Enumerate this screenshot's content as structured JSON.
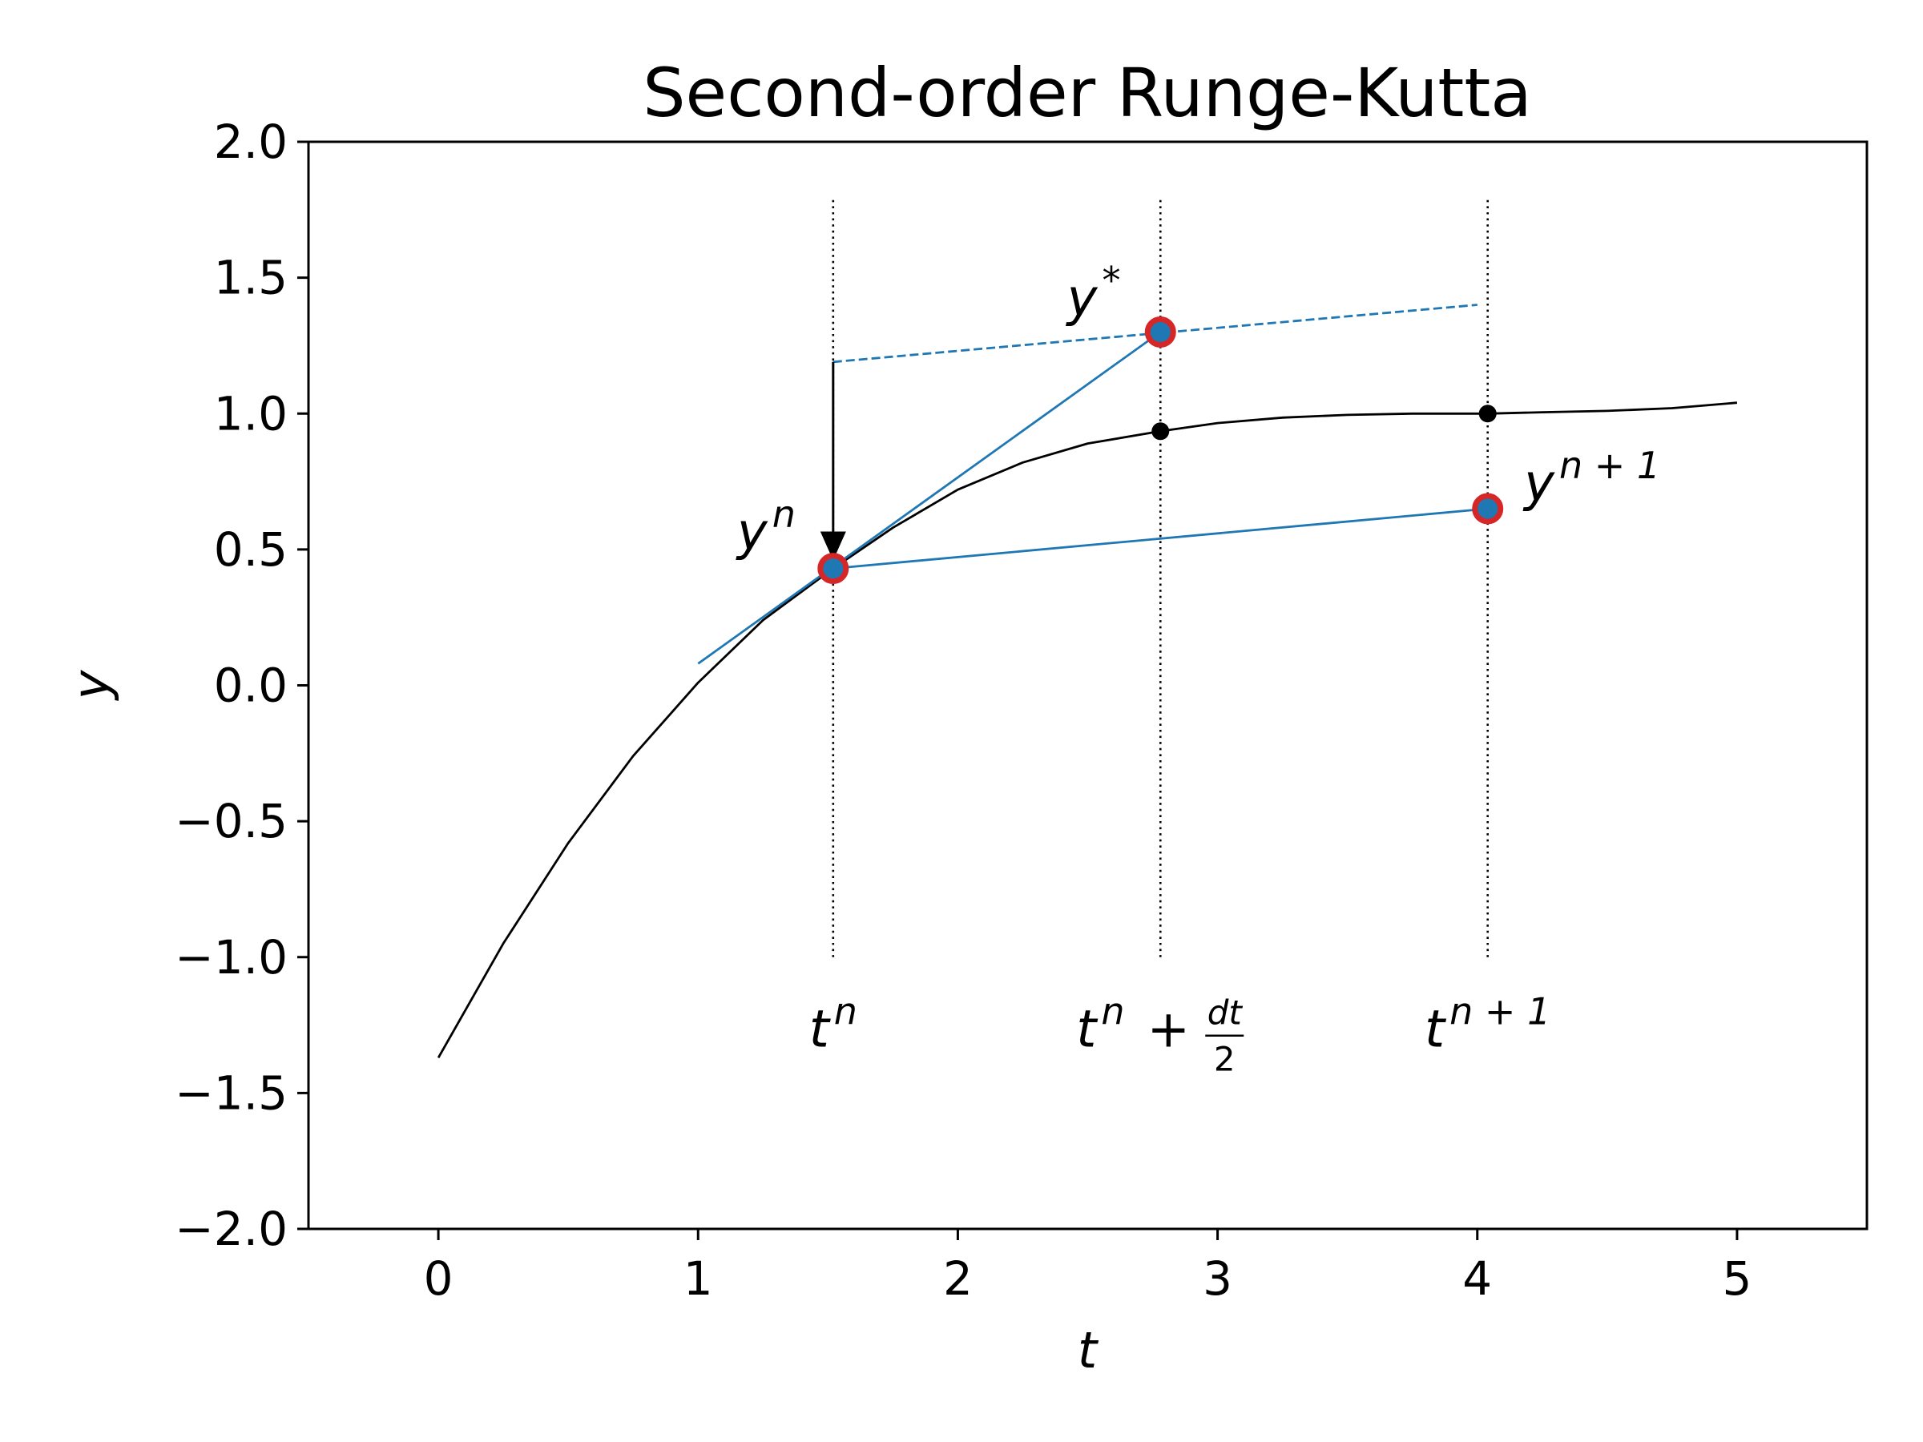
{
  "chart_data": {
    "type": "line",
    "title": "Second-order Runge-Kutta",
    "xlabel": "t",
    "ylabel": "y",
    "xlim": [
      -0.5,
      5.5
    ],
    "ylim": [
      -2.0,
      2.0
    ],
    "x_ticks": [
      0,
      1,
      2,
      3,
      4,
      5
    ],
    "x_tick_labels": [
      "0",
      "1",
      "2",
      "3",
      "4",
      "5"
    ],
    "y_ticks": [
      -2.0,
      -1.5,
      -1.0,
      -0.5,
      0.0,
      0.5,
      1.0,
      1.5,
      2.0
    ],
    "y_tick_labels": [
      "−2.0",
      "−1.5",
      "−1.0",
      "−0.5",
      "0.0",
      "0.5",
      "1.0",
      "1.5",
      "2.0"
    ],
    "grid": false,
    "series": [
      {
        "color": "#000000",
        "style": "solid",
        "x": [
          0.0,
          0.25,
          0.5,
          0.75,
          1.0,
          1.25,
          1.52,
          1.75,
          2.0,
          2.25,
          2.5,
          2.78,
          3.0,
          3.25,
          3.5,
          3.75,
          4.04,
          4.25,
          4.5,
          4.75,
          5.0
        ],
        "y": [
          -1.37,
          -0.95,
          -0.58,
          -0.26,
          0.01,
          0.24,
          0.43,
          0.58,
          0.72,
          0.82,
          0.89,
          0.935,
          0.965,
          0.985,
          0.995,
          1.0,
          1.0,
          1.005,
          1.01,
          1.02,
          1.04
        ]
      },
      {
        "color": "#1f77b4",
        "style": "solid",
        "x": [
          1.0,
          2.78
        ],
        "y": [
          0.08,
          1.3
        ]
      },
      {
        "color": "#1f77b4",
        "style": "solid",
        "x": [
          1.52,
          4.04
        ],
        "y": [
          0.43,
          0.65
        ]
      },
      {
        "color": "#1f77b4",
        "style": "dashed",
        "x": [
          1.52,
          4.0
        ],
        "y": [
          1.19,
          1.4
        ]
      }
    ],
    "vlines": [
      {
        "x": 1.52,
        "y0": -1.0,
        "y1": 1.8
      },
      {
        "x": 2.78,
        "y0": -1.0,
        "y1": 1.8
      },
      {
        "x": 4.04,
        "y0": -1.0,
        "y1": 1.8
      }
    ],
    "markers_highlight": [
      {
        "x": 1.52,
        "y": 0.43
      },
      {
        "x": 2.78,
        "y": 1.3
      },
      {
        "x": 4.04,
        "y": 0.65
      }
    ],
    "markers_exact": [
      {
        "x": 2.78,
        "y": 0.935
      },
      {
        "x": 4.04,
        "y": 1.0
      }
    ],
    "arrow": {
      "x": 1.52,
      "y_from": 1.19,
      "y_to": 0.46
    },
    "annotations": {
      "y_n": {
        "base": "y",
        "sup": "n",
        "x": 1.15,
        "y": 0.5
      },
      "y_star": {
        "base": "y",
        "sup": "*",
        "x": 2.42,
        "y": 1.36
      },
      "y_n1": {
        "base": "y",
        "sup": "n + 1",
        "x": 4.18,
        "y": 0.68
      },
      "t_n": {
        "base": "t",
        "sup": "n",
        "x": 1.52,
        "y": -1.33
      },
      "t_half": {
        "base": "t",
        "sup": "n",
        "plus": "+",
        "frac_num": "dt",
        "frac_den": "2",
        "x": 2.78,
        "y": -1.33
      },
      "t_n1": {
        "base": "t",
        "sup": "n + 1",
        "x": 4.04,
        "y": -1.33
      }
    },
    "colors": {
      "curve": "#000000",
      "line": "#1f77b4",
      "marker_edge": "#d62728",
      "marker_face": "#1f77b4"
    }
  }
}
